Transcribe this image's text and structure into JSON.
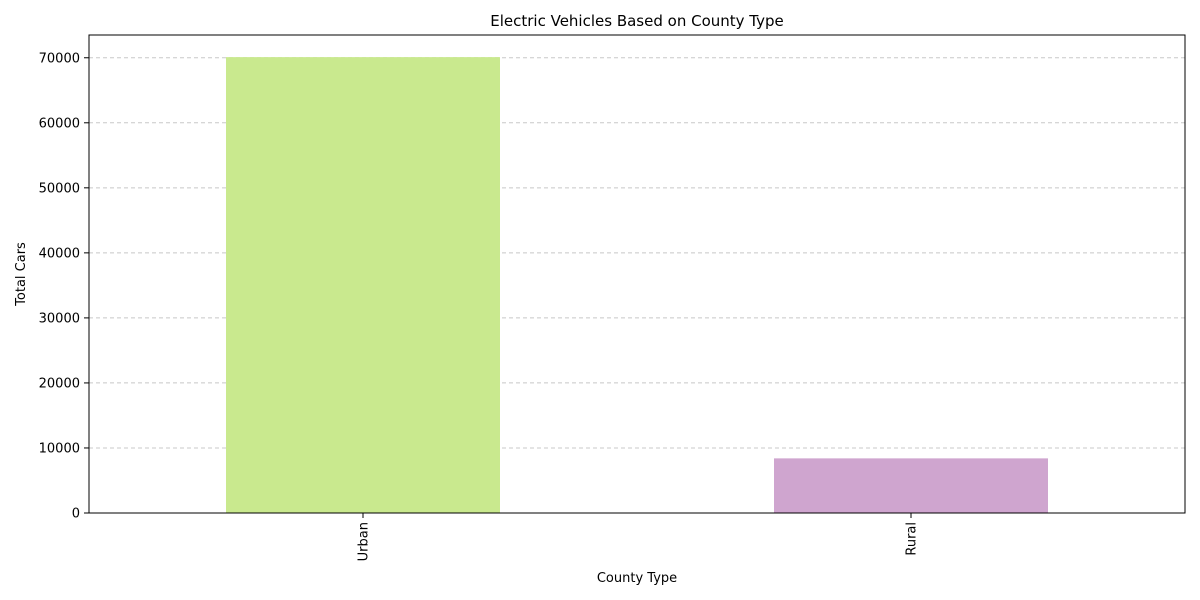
{
  "chart_data": {
    "type": "bar",
    "title": "Electric Vehicles Based on County Type",
    "xlabel": "County Type",
    "ylabel": "Total Cars",
    "categories": [
      "Urban",
      "Rural"
    ],
    "values": [
      70100,
      8400
    ],
    "colors": [
      "#c9e98e",
      "#cfa5cf"
    ],
    "ylim": [
      0,
      73500
    ],
    "yticks": [
      0,
      10000,
      20000,
      30000,
      40000,
      50000,
      60000,
      70000
    ],
    "ytick_labels": [
      "0",
      "10000",
      "20000",
      "30000",
      "40000",
      "50000",
      "60000",
      "70000"
    ],
    "grid": "y-dashed",
    "xtick_rotation": "vertical",
    "legend": "none"
  }
}
